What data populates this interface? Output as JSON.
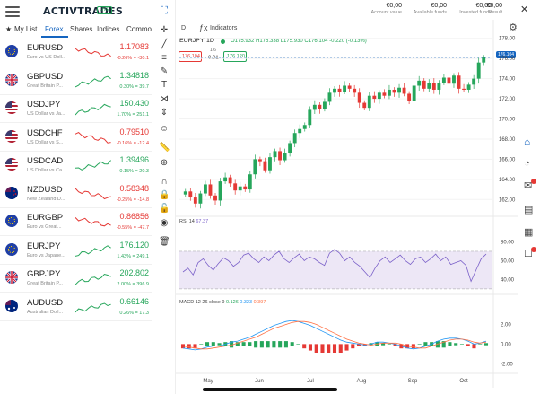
{
  "app": {
    "logo_text": "ACTIVTRADES",
    "live_badge": "LIVE"
  },
  "tabs": [
    {
      "label": "My List",
      "active": false
    },
    {
      "label": "Forex",
      "active": true
    },
    {
      "label": "Shares",
      "active": false
    },
    {
      "label": "Indices",
      "active": false
    },
    {
      "label": "Commo",
      "active": false
    }
  ],
  "instruments": [
    {
      "pair": "EURUSD",
      "desc": "Euro vs US Doll...",
      "price": "1.17083",
      "change": "-0.26% = -30.1",
      "dir": "down",
      "flag": "eu"
    },
    {
      "pair": "GBPUSD",
      "desc": "Great Britain P...",
      "price": "1.34818",
      "change": "0.30% = 39.7",
      "dir": "up",
      "flag": "gb"
    },
    {
      "pair": "USDJPY",
      "desc": "US Dollar vs Ja...",
      "price": "150.430",
      "change": "1.70% = 251.1",
      "dir": "up",
      "flag": "us"
    },
    {
      "pair": "USDCHF",
      "desc": "US Dollar vs S...",
      "price": "0.79510",
      "change": "-0.16% = -12.4",
      "dir": "down",
      "flag": "us"
    },
    {
      "pair": "USDCAD",
      "desc": "US Dollar vs Ca...",
      "price": "1.39496",
      "change": "0.15% = 20.3",
      "dir": "up",
      "flag": "us"
    },
    {
      "pair": "NZDUSD",
      "desc": "New Zealand D...",
      "price": "0.58348",
      "change": "-0.25% = -14.8",
      "dir": "down",
      "flag": "nz"
    },
    {
      "pair": "EURGBP",
      "desc": "Euro vs Great...",
      "price": "0.86856",
      "change": "-0.55% = -47.7",
      "dir": "down",
      "flag": "eu"
    },
    {
      "pair": "EURJPY",
      "desc": "Euro vs Japane...",
      "price": "176.120",
      "change": "1.43% = 249.1",
      "dir": "up",
      "flag": "eu"
    },
    {
      "pair": "GBPJPY",
      "desc": "Great Britain P...",
      "price": "202.802",
      "change": "2.00% = 396.9",
      "dir": "up",
      "flag": "gb"
    },
    {
      "pair": "AUDUSD",
      "desc": "Australian Doll...",
      "price": "0.66146",
      "change": "0.26% = 17.3",
      "dir": "up",
      "flag": "au"
    }
  ],
  "account": [
    {
      "value": "€0,00",
      "label": "Account value"
    },
    {
      "value": "€0,00",
      "label": "Available funds"
    },
    {
      "value": "€0,00",
      "label": "Invested funds"
    },
    {
      "value": "€0,00",
      "label": "Result"
    }
  ],
  "chart_header": {
    "timeframe": "D",
    "indicators_label": "Indicators",
    "symbol": "EURJPY",
    "interval": "1D",
    "ohlc": "O175.932 H176.338 L175.930 C176.104 -0.220 (-0.13%)",
    "sell_price": "176.104",
    "spread_top": "1.6",
    "spread_bottom": "0.01",
    "buy_price": "176.120",
    "last_price_tag": "176.104"
  },
  "rsi_label": {
    "name": "RSI",
    "params": "14",
    "value": "67.37"
  },
  "macd_label": {
    "name": "MACD",
    "params": "12 26 close 9",
    "v1": "0.126",
    "v2": "0.323",
    "v3": "0.397"
  },
  "colors": {
    "up": "#26a65b",
    "down": "#e53935",
    "accent": "#1565c0",
    "rsi": "#7b61c9",
    "macd": "#2196f3",
    "signal": "#ff7043"
  },
  "chart_data": [
    {
      "type": "candlestick",
      "title": "EURJPY 1D",
      "x_ticks": [
        "May",
        "Jun",
        "Jul",
        "Aug",
        "Sep",
        "Oct"
      ],
      "y_ticks": [
        162.0,
        164.0,
        166.0,
        168.0,
        170.0,
        172.0,
        174.0,
        176.0,
        178.0
      ],
      "ylim": [
        160.6,
        178.6
      ],
      "close_path": [
        162.8,
        162.2,
        161.6,
        162.6,
        163.5,
        162.4,
        161.9,
        163.8,
        164.2,
        163.6,
        162.9,
        163.3,
        163.0,
        164.5,
        166.0,
        165.8,
        164.9,
        166.2,
        166.8,
        165.9,
        166.6,
        167.6,
        168.6,
        169.0,
        169.4,
        170.9,
        171.4,
        171.0,
        171.7,
        172.6,
        173.0,
        172.7,
        173.3,
        173.0,
        172.6,
        171.6,
        171.1,
        172.3,
        172.0,
        172.6,
        172.3,
        172.9,
        172.6,
        173.1,
        172.5,
        171.8,
        173.3,
        173.8,
        173.0,
        173.6,
        172.9,
        173.6,
        174.1,
        173.5,
        174.3,
        173.0,
        172.9,
        173.4,
        174.0,
        175.6,
        176.1
      ]
    },
    {
      "type": "line",
      "title": "RSI 14",
      "y_ticks": [
        40.0,
        60.0,
        80.0
      ],
      "ylim": [
        28,
        90
      ],
      "levels": [
        30,
        70
      ],
      "values": [
        48,
        52,
        45,
        58,
        62,
        55,
        50,
        57,
        63,
        60,
        54,
        58,
        66,
        68,
        62,
        58,
        64,
        60,
        66,
        70,
        62,
        58,
        63,
        67,
        60,
        64,
        62,
        58,
        55,
        68,
        72,
        68,
        60,
        64,
        58,
        54,
        48,
        42,
        52,
        60,
        64,
        58,
        62,
        66,
        60,
        56,
        62,
        64,
        58,
        62,
        67,
        60,
        64,
        56,
        58,
        60,
        55,
        38,
        50,
        62,
        67
      ]
    },
    {
      "type": "bar+line",
      "title": "MACD 12 26 close 9",
      "y_ticks": [
        -2.0,
        0.0,
        2.0
      ],
      "ylim": [
        -2.8,
        3.6
      ],
      "macd": [
        -0.4,
        -0.5,
        -0.6,
        -0.5,
        -0.3,
        -0.2,
        -0.2,
        0.0,
        0.2,
        0.3,
        0.5,
        0.7,
        1.0,
        1.3,
        1.6,
        1.9,
        2.1,
        2.3,
        2.4,
        2.3,
        2.1,
        1.9,
        1.6,
        1.3,
        1.0,
        0.7,
        0.4,
        0.2,
        0.1,
        0.0,
        -0.1,
        0.0,
        0.2,
        0.2,
        0.1,
        0.0,
        -0.2,
        -0.4,
        -0.5,
        -0.4,
        -0.2,
        0.0,
        0.3,
        0.5,
        0.6,
        0.6,
        0.5,
        0.3,
        0.0,
        0.1,
        0.3
      ],
      "signal": [
        -0.2,
        -0.3,
        -0.4,
        -0.5,
        -0.5,
        -0.4,
        -0.3,
        -0.2,
        -0.1,
        0.1,
        0.3,
        0.5,
        0.7,
        1.0,
        1.3,
        1.6,
        1.8,
        2.0,
        2.2,
        2.3,
        2.3,
        2.2,
        2.0,
        1.7,
        1.4,
        1.1,
        0.8,
        0.5,
        0.3,
        0.1,
        0.0,
        -0.1,
        0.0,
        0.1,
        0.1,
        0.1,
        0.0,
        -0.2,
        -0.3,
        -0.4,
        -0.4,
        -0.2,
        0.0,
        0.2,
        0.4,
        0.5,
        0.5,
        0.4,
        0.2,
        0.1,
        0.2
      ]
    }
  ]
}
